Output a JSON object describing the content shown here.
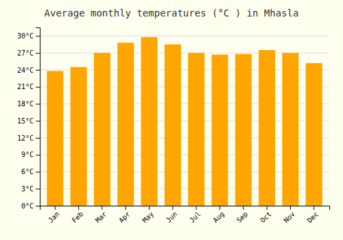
{
  "chart_data": {
    "type": "bar",
    "title": "Average monthly temperatures (°C ) in Mhasla",
    "categories": [
      "Jan",
      "Feb",
      "Mar",
      "Apr",
      "May",
      "Jun",
      "Jul",
      "Aug",
      "Sep",
      "Oct",
      "Nov",
      "Dec"
    ],
    "values": [
      23.8,
      24.5,
      27.0,
      28.8,
      29.8,
      28.5,
      27.0,
      26.7,
      26.8,
      27.5,
      27.0,
      25.2
    ],
    "color": "#FFA500",
    "ylim": [
      0,
      31.5
    ],
    "yticks": [
      {
        "value": 0,
        "label": "0°C"
      },
      {
        "value": 3,
        "label": "3°C"
      },
      {
        "value": 6,
        "label": "6°C"
      },
      {
        "value": 9,
        "label": "9°C"
      },
      {
        "value": 12,
        "label": "12°C"
      },
      {
        "value": 15,
        "label": "15°C"
      },
      {
        "value": 18,
        "label": "18°C"
      },
      {
        "value": 21,
        "label": "21°C"
      },
      {
        "value": 24,
        "label": "24°C"
      },
      {
        "value": 27,
        "label": "27°C"
      },
      {
        "value": 30,
        "label": "30°C"
      }
    ],
    "grid": true
  }
}
